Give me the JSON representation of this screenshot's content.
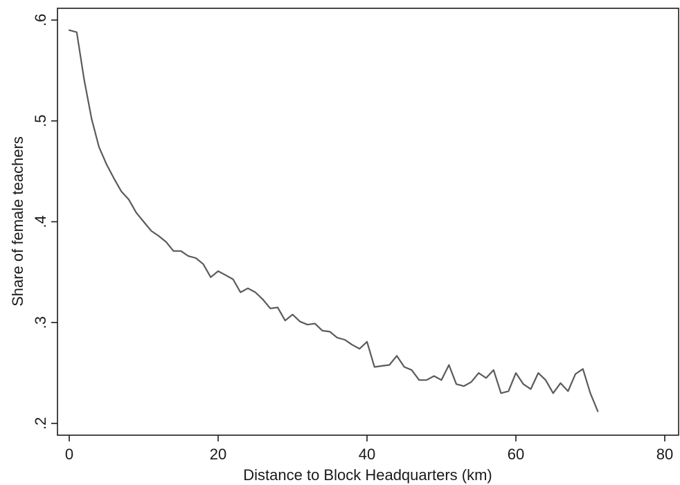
{
  "chart_data": {
    "type": "line",
    "title": "",
    "xlabel": "Distance to Block Headquarters (km)",
    "ylabel": "Share of female teachers",
    "xlim": [
      0,
      80
    ],
    "ylim": [
      0.2,
      0.6
    ],
    "xticks": [
      0,
      20,
      40,
      60,
      80
    ],
    "xtick_labels": [
      "0",
      "20",
      "40",
      "60",
      "80"
    ],
    "yticks": [
      0.2,
      0.3,
      0.4,
      0.5,
      0.6
    ],
    "ytick_labels": [
      ".2",
      ".3",
      ".4",
      ".5",
      ".6"
    ],
    "grid": false,
    "legend": "none",
    "line_color": "#5a5a5a",
    "series": [
      {
        "x": [
          0,
          1,
          2,
          3,
          4,
          5,
          6,
          7,
          8,
          9,
          10,
          11,
          12,
          13,
          14,
          15,
          16,
          17,
          18,
          19,
          20,
          21,
          22,
          23,
          24,
          25,
          26,
          27,
          28,
          29,
          30,
          31,
          32,
          33,
          34,
          35,
          36,
          37,
          38,
          39,
          40,
          41,
          42,
          43,
          44,
          45,
          46,
          47,
          48,
          49,
          50,
          51,
          52,
          53,
          54,
          55,
          56,
          57,
          58,
          59,
          60,
          61,
          62,
          63,
          64,
          65,
          66,
          67,
          68,
          69,
          70,
          71
        ],
        "y": [
          0.59,
          0.588,
          0.541,
          0.502,
          0.474,
          0.457,
          0.443,
          0.43,
          0.422,
          0.409,
          0.4,
          0.391,
          0.386,
          0.38,
          0.371,
          0.371,
          0.366,
          0.364,
          0.358,
          0.345,
          0.351,
          0.347,
          0.343,
          0.33,
          0.334,
          0.33,
          0.323,
          0.314,
          0.315,
          0.302,
          0.308,
          0.301,
          0.298,
          0.299,
          0.292,
          0.291,
          0.285,
          0.283,
          0.278,
          0.274,
          0.281,
          0.256,
          0.257,
          0.258,
          0.267,
          0.256,
          0.253,
          0.243,
          0.243,
          0.247,
          0.243,
          0.258,
          0.239,
          0.237,
          0.241,
          0.25,
          0.245,
          0.253,
          0.23,
          0.232,
          0.25,
          0.239,
          0.234,
          0.25,
          0.243,
          0.23,
          0.24,
          0.232,
          0.249,
          0.254,
          0.23,
          0.212
        ]
      }
    ]
  }
}
